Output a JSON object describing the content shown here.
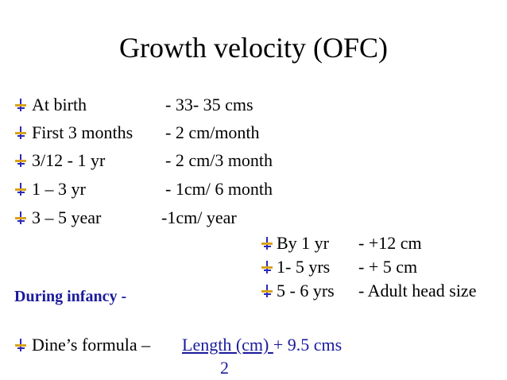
{
  "title": "Growth velocity (OFC)",
  "rows": [
    {
      "label": "At birth",
      "value": "- 33- 35 cms"
    },
    {
      "label": "First 3 months",
      "value": "- 2 cm/month"
    },
    {
      "label": "3/12 - 1 yr",
      "value": "- 2 cm/3 month"
    },
    {
      "label": "1 – 3 yr",
      "value": "- 1cm/ 6 month"
    },
    {
      "label": "3 – 5 year",
      "value": "-1cm/ year"
    }
  ],
  "infancy_label": "During infancy  -",
  "infancy_rows": [
    {
      "label": "By 1 yr",
      "value": "- +12 cm"
    },
    {
      "label": "1- 5 yrs",
      "value": "- + 5 cm"
    },
    {
      "label": "5 - 6 yrs",
      "value": "- Adult head size"
    }
  ],
  "formula": {
    "label": "Dine’s formula –",
    "numerator": "Length (cm) ",
    "suffix": "+ 9.5  cms",
    "denominator": "2"
  },
  "colors": {
    "accent_blue": "#1a1a9c",
    "bullet_gold": "#d9a31a",
    "bullet_blue": "#2a2ab8"
  },
  "icons": {
    "bullet": "push-pin-icon"
  }
}
